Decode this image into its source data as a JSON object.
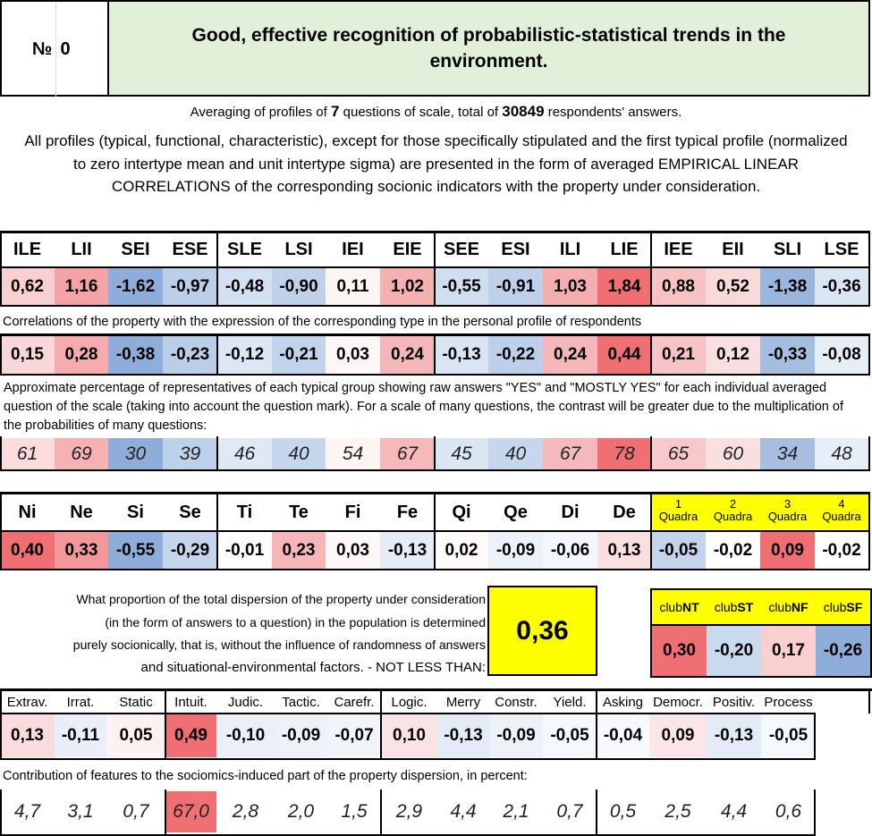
{
  "header": {
    "no_label": "№",
    "no_value": "0",
    "title": "Good, effective recognition of probabilistic-statistical trends in the environment."
  },
  "averaging": {
    "pre": "Averaging of profiles of ",
    "questions": "7",
    "mid": " questions of scale, total of ",
    "respondents": "30849",
    "post": " respondents' answers."
  },
  "intro": "All profiles (typical, functional, characteristic), except for those specifically stipulated and the first typical profile (normalized to zero intertype mean and unit intertype sigma) are presented in the form of averaged EMPIRICAL LINEAR CORRELATIONS of the corresponding socionic indicators with the property under consideration.",
  "types": {
    "labels": [
      "ILE",
      "LII",
      "SEI",
      "ESE",
      "SLE",
      "LSI",
      "IEI",
      "EIE",
      "SEE",
      "ESI",
      "ILI",
      "LIE",
      "IEE",
      "EII",
      "SLI",
      "LSE"
    ],
    "profile": [
      "0,62",
      "1,16",
      "-1,62",
      "-0,97",
      "-0,48",
      "-0,90",
      "0,11",
      "1,02",
      "-0,55",
      "-0,91",
      "1,03",
      "1,84",
      "0,88",
      "0,52",
      "-1,38",
      "-0,36"
    ],
    "profile_colors": [
      "#f8d0d1",
      "#f4a4a7",
      "#8eadd8",
      "#bccfe9",
      "#d3e0f1",
      "#c0d2ea",
      "#fdf4f4",
      "#f5b0b2",
      "#d0def0",
      "#bfd1ea",
      "#f5aeb0",
      "#ef6f73",
      "#f7c2c3",
      "#fad9da",
      "#9ab6dc",
      "#dbe6f3"
    ],
    "corr_label": "Correlations of the property with the expression of the corresponding type in the personal profile of respondents",
    "corr": [
      "0,15",
      "0,28",
      "-0,38",
      "-0,23",
      "-0,12",
      "-0,21",
      "0,03",
      "0,24",
      "-0,13",
      "-0,22",
      "0,24",
      "0,44",
      "0,21",
      "0,12",
      "-0,33",
      "-0,08"
    ],
    "corr_colors": [
      "#f9d6d7",
      "#f6acaf",
      "#8eadd8",
      "#bacee8",
      "#dde7f4",
      "#c2d4eb",
      "#fdf7f7",
      "#f5b7b9",
      "#dae5f3",
      "#bdd0e9",
      "#f5b7b9",
      "#ef6f73",
      "#f7c3c4",
      "#fadfe0",
      "#a4bee0",
      "#e5edf7"
    ],
    "pct_label": "Approximate percentage of representatives of each typical group showing raw answers \"YES\" and \"MOSTLY YES\" for each individual averaged question of the scale (taking into account the question mark). For a scale of many questions, the contrast will be greater due to the multiplication of the probabilities of many questions:",
    "pct": [
      "61",
      "69",
      "30",
      "39",
      "46",
      "40",
      "54",
      "67",
      "45",
      "40",
      "67",
      "78",
      "65",
      "60",
      "34",
      "48"
    ],
    "pct_colors": [
      "#fadcdd",
      "#f6b1b3",
      "#8eadd8",
      "#bed1ea",
      "#dfe8f4",
      "#c6d7ed",
      "#fdf4f4",
      "#f6b9bb",
      "#dbe6f3",
      "#c6d7ed",
      "#f6b9bb",
      "#ef6f73",
      "#f8c9ca",
      "#fadfe0",
      "#a6bfe0",
      "#e7eef7"
    ]
  },
  "functions": {
    "labels": [
      "Ni",
      "Ne",
      "Si",
      "Se",
      "Ti",
      "Te",
      "Fi",
      "Fe",
      "Qi",
      "Qe",
      "Di",
      "De"
    ],
    "values": [
      "0,40",
      "0,33",
      "-0,55",
      "-0,29",
      "-0,01",
      "0,23",
      "0,03",
      "-0,13",
      "0,02",
      "-0,09",
      "-0,06",
      "0,13"
    ],
    "colors": [
      "#ef6f73",
      "#f4979a",
      "#8eadd8",
      "#c5d6ec",
      "#fcfdfe",
      "#f6b6b8",
      "#fef8f8",
      "#e4ecf6",
      "#fefafa",
      "#edf2f9",
      "#f3f6fb",
      "#fadfe0"
    ]
  },
  "quadras": {
    "labels": [
      [
        "1",
        "Quadra"
      ],
      [
        "2",
        "Quadra"
      ],
      [
        "3",
        "Quadra"
      ],
      [
        "4",
        "Quadra"
      ]
    ],
    "values": [
      "-0,05",
      "-0,02",
      "0,09",
      "-0,02"
    ],
    "colors": [
      "#c3d4eb",
      "#ffffff",
      "#ef6f73",
      "#ffffff"
    ],
    "header_bg": "#ffff00"
  },
  "dispersion": {
    "text": [
      "What proportion of the total dispersion of the property under consideration",
      "(in the form of answers to a question) in the population is determined",
      "purely socionically, that is, without the influence of randomness of answers",
      "and situational-environmental factors. - NOT LESS THAN:"
    ],
    "value": "0,36",
    "value_bg": "#ffff00"
  },
  "clubs": {
    "labels": [
      [
        "club",
        "NT"
      ],
      [
        "club",
        "ST"
      ],
      [
        "club",
        "NF"
      ],
      [
        "club",
        "SF"
      ]
    ],
    "values": [
      "0,30",
      "-0,20",
      "0,17",
      "-0,26"
    ],
    "colors": [
      "#ef6f73",
      "#c9d9ee",
      "#f9cfd0",
      "#8eadd8"
    ],
    "header_bg": "#ffff00"
  },
  "traits": {
    "labels": [
      "Extrav.",
      "Irrat.",
      "Static",
      "Intuit.",
      "Judic.",
      "Tactic.",
      "Carefr.",
      "Logic.",
      "Merry",
      "Constr.",
      "Yield.",
      "Asking",
      "Democr.",
      "Positiv.",
      "Process"
    ],
    "values": [
      "0,13",
      "-0,11",
      "0,05",
      "0,49",
      "-0,10",
      "-0,09",
      "-0,07",
      "0,10",
      "-0,13",
      "-0,09",
      "-0,05",
      "-0,04",
      "0,09",
      "-0,13",
      "-0,05"
    ],
    "colors": [
      "#fadcdd",
      "#e8eff8",
      "#fdf1f1",
      "#ef6f73",
      "#eaf0f8",
      "#edf2f9",
      "#f1f5fa",
      "#fbe3e4",
      "#e3ebf6",
      "#edf2f9",
      "#f5f8fc",
      "#f7f9fc",
      "#fbe6e7",
      "#e3ebf6",
      "#f5f8fc"
    ],
    "contrib_label": "Contribution of features to the sociomics-induced part of the property dispersion, in percent:",
    "contrib": [
      "4,7",
      "3,1",
      "0,7",
      "67,0",
      "2,8",
      "2,0",
      "1,5",
      "2,9",
      "4,4",
      "2,1",
      "0,7",
      "0,5",
      "2,5",
      "4,4",
      "0,6"
    ],
    "contrib_colors": [
      "#ffffff",
      "#ffffff",
      "#ffffff",
      "#ef6f73",
      "#ffffff",
      "#ffffff",
      "#ffffff",
      "#ffffff",
      "#ffffff",
      "#ffffff",
      "#ffffff",
      "#ffffff",
      "#ffffff",
      "#ffffff",
      "#ffffff"
    ]
  }
}
